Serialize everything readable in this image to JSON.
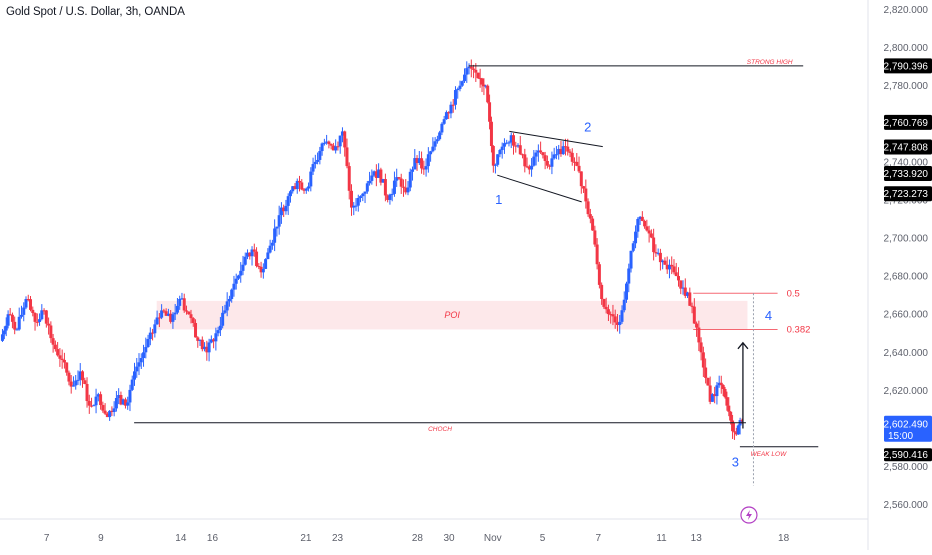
{
  "header": {
    "title": "Gold Spot / U.S. Dollar, 3h, OANDA"
  },
  "colors": {
    "up": "#2962ff",
    "down": "#f23645",
    "text": "#131722",
    "axis_text": "#5d606b",
    "annotation_blue": "#2962ff",
    "poi_fill": "#fde4e6",
    "level_red": "#f23645",
    "current_badge": "#2962ff",
    "price_badge": "#000000"
  },
  "chart_data": {
    "type": "candlestick",
    "title": "Gold Spot / U.S. Dollar, 3h, OANDA",
    "ylim": [
      2553,
      2825
    ],
    "y_ticks": [
      "2,820.000",
      "2,800.000",
      "2,780.000",
      "2,760.000",
      "2,740.000",
      "2,720.000",
      "2,700.000",
      "2,680.000",
      "2,660.000",
      "2,640.000",
      "2,620.000",
      "2,600.000",
      "2,580.000",
      "2,560.000"
    ],
    "x_ticks": [
      "7",
      "9",
      "14",
      "16",
      "21",
      "23",
      "28",
      "30",
      "Nov",
      "5",
      "7",
      "11",
      "13",
      "18"
    ],
    "x_tick_positions": [
      0.3,
      3.9,
      9.2,
      11.3,
      17.5,
      19.6,
      24.9,
      27.0,
      29.9,
      33.2,
      36.9,
      41.1,
      43.4,
      49.2
    ],
    "x_range": [
      -2.8,
      54.8
    ],
    "price_badges": [
      "2,790.396",
      "2,760.769",
      "2,747.808",
      "2,733.920",
      "2,723.273"
    ],
    "current_price": {
      "label": "2,602.490",
      "countdown": "15:00",
      "value": 2602.49
    },
    "low_price": {
      "label": "2,590.416",
      "value": 2590.416
    },
    "price_path": [
      [
        -2.7,
        2646
      ],
      [
        -2.2,
        2660
      ],
      [
        -1.6,
        2652
      ],
      [
        -1.0,
        2668
      ],
      [
        -0.4,
        2656
      ],
      [
        0.2,
        2662
      ],
      [
        0.8,
        2644
      ],
      [
        1.4,
        2636
      ],
      [
        2.0,
        2622
      ],
      [
        2.6,
        2630
      ],
      [
        3.2,
        2612
      ],
      [
        3.8,
        2618
      ],
      [
        4.4,
        2606
      ],
      [
        5.0,
        2616
      ],
      [
        5.6,
        2612
      ],
      [
        6.2,
        2630
      ],
      [
        6.8,
        2640
      ],
      [
        7.4,
        2650
      ],
      [
        8.0,
        2662
      ],
      [
        8.6,
        2656
      ],
      [
        9.2,
        2668
      ],
      [
        9.8,
        2660
      ],
      [
        10.4,
        2646
      ],
      [
        11.0,
        2640
      ],
      [
        11.6,
        2650
      ],
      [
        12.2,
        2662
      ],
      [
        12.8,
        2676
      ],
      [
        13.4,
        2686
      ],
      [
        14.0,
        2694
      ],
      [
        14.6,
        2682
      ],
      [
        15.2,
        2696
      ],
      [
        15.8,
        2712
      ],
      [
        16.4,
        2722
      ],
      [
        17.0,
        2730
      ],
      [
        17.6,
        2726
      ],
      [
        18.2,
        2740
      ],
      [
        18.8,
        2750
      ],
      [
        19.4,
        2746
      ],
      [
        20.0,
        2756
      ],
      [
        20.6,
        2716
      ],
      [
        21.2,
        2722
      ],
      [
        21.8,
        2730
      ],
      [
        22.4,
        2736
      ],
      [
        23.0,
        2720
      ],
      [
        23.6,
        2732
      ],
      [
        24.2,
        2724
      ],
      [
        24.8,
        2742
      ],
      [
        25.4,
        2736
      ],
      [
        26.0,
        2748
      ],
      [
        26.6,
        2760
      ],
      [
        27.2,
        2770
      ],
      [
        27.8,
        2780
      ],
      [
        28.4,
        2790
      ],
      [
        29.0,
        2784
      ],
      [
        29.5,
        2780
      ],
      [
        30.0,
        2738
      ],
      [
        30.6,
        2748
      ],
      [
        31.2,
        2754
      ],
      [
        31.8,
        2744
      ],
      [
        32.4,
        2736
      ],
      [
        33.0,
        2746
      ],
      [
        33.6,
        2738
      ],
      [
        34.2,
        2744
      ],
      [
        34.8,
        2748
      ],
      [
        35.4,
        2740
      ],
      [
        36.0,
        2726
      ],
      [
        36.6,
        2704
      ],
      [
        37.2,
        2668
      ],
      [
        37.8,
        2660
      ],
      [
        38.4,
        2656
      ],
      [
        39.0,
        2684
      ],
      [
        39.6,
        2710
      ],
      [
        40.2,
        2704
      ],
      [
        40.8,
        2692
      ],
      [
        41.4,
        2686
      ],
      [
        42.0,
        2682
      ],
      [
        42.6,
        2674
      ],
      [
        43.2,
        2664
      ],
      [
        43.8,
        2640
      ],
      [
        44.4,
        2614
      ],
      [
        45.0,
        2624
      ],
      [
        45.5,
        2612
      ],
      [
        46.0,
        2598
      ],
      [
        46.5,
        2604
      ]
    ],
    "annotations": {
      "strong_high": "STRONG HIGH",
      "choch": "CHOCH",
      "poi": "POI",
      "weak_low": "WEAK LOW",
      "fib_05": "0.5",
      "fib_0382": "0.382",
      "wave_1": "1",
      "wave_2": "2",
      "wave_3": "3",
      "wave_4": "4",
      "strong_high_price": 2790.4,
      "choch_price": 2603,
      "poi_range": [
        2652,
        2667
      ],
      "fib_05_price": 2671,
      "fib_0382_price": 2652,
      "weak_low_price": 2590.4
    }
  }
}
